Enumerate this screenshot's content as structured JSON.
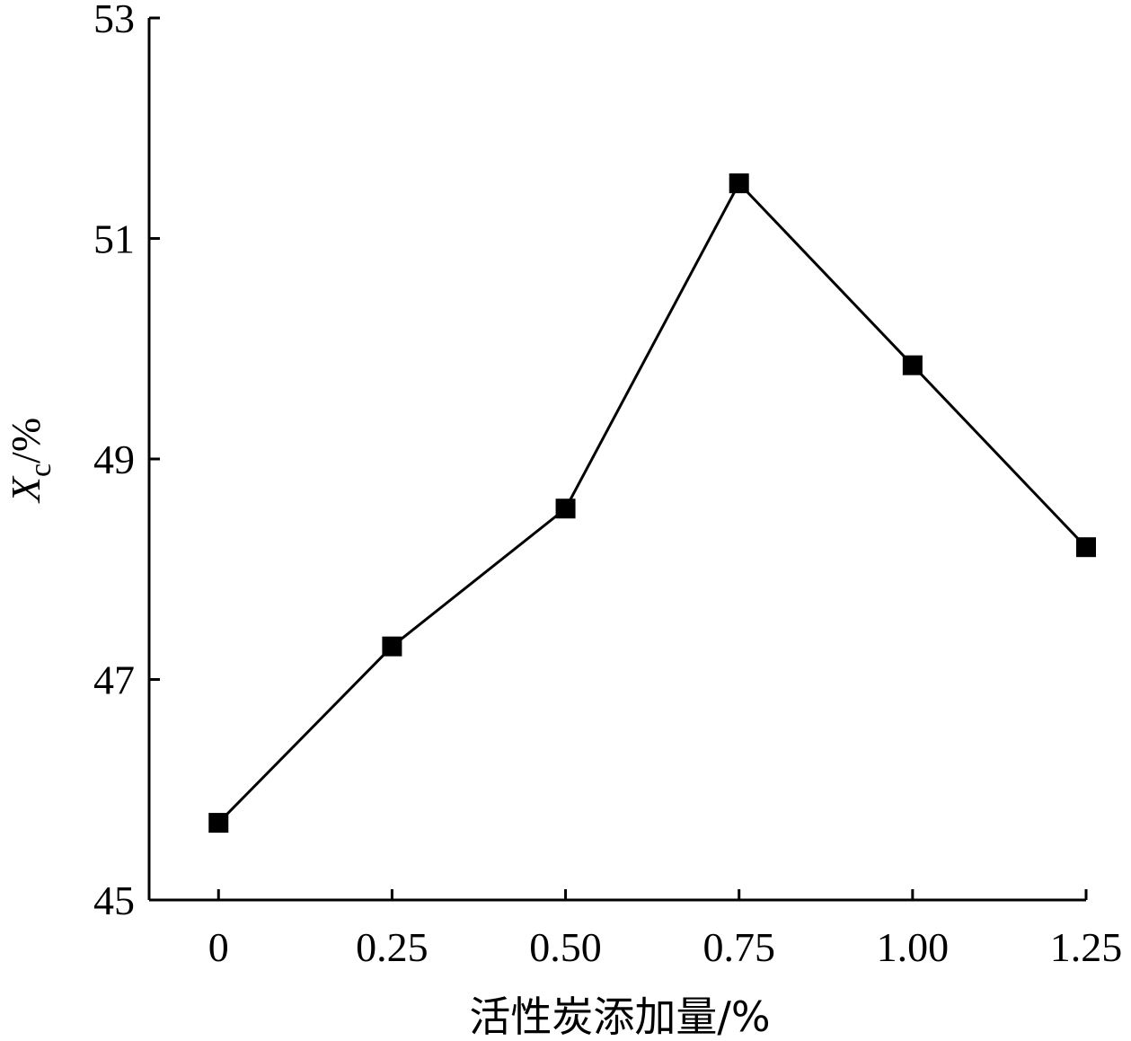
{
  "chart_data": {
    "type": "line",
    "x": [
      0,
      0.25,
      0.5,
      0.75,
      1.0,
      1.25
    ],
    "x_tick_labels": [
      "0",
      "0.25",
      "0.50",
      "0.75",
      "1.00",
      "1.25"
    ],
    "series": [
      {
        "values": [
          45.7,
          47.3,
          48.55,
          51.5,
          49.85,
          48.2
        ]
      }
    ],
    "y_ticks": [
      45,
      47,
      49,
      51,
      53
    ],
    "y_tick_labels": [
      "45",
      "47",
      "49",
      "51",
      "53"
    ],
    "xlim": [
      -0.1,
      1.25
    ],
    "ylim": [
      45,
      53
    ],
    "xlabel": "活性炭添加量/%",
    "ylabel": {
      "symbol": "X",
      "subscript": "c",
      "unit": "/%"
    },
    "marker": "square",
    "grid": false,
    "line_color": "#000000",
    "marker_color": "#000000"
  }
}
